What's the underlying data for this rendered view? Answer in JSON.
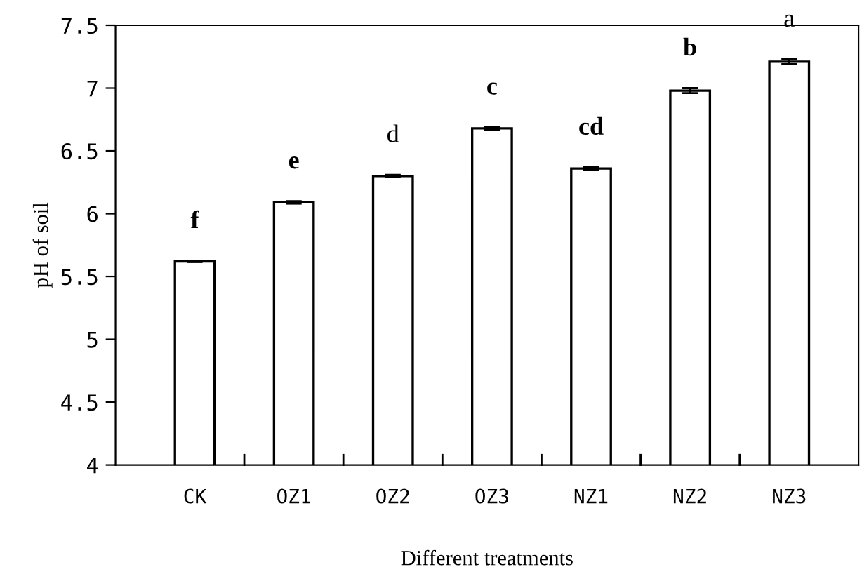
{
  "chart_data": {
    "type": "bar",
    "xlabel": "Different treatments",
    "ylabel": "pH of soil",
    "categories": [
      "CK",
      "OZ1",
      "OZ2",
      "OZ3",
      "NZ1",
      "NZ2",
      "NZ3"
    ],
    "values": [
      5.62,
      6.09,
      6.3,
      6.68,
      6.36,
      6.98,
      7.21
    ],
    "errors": [
      0.005,
      0.01,
      0.01,
      0.01,
      0.01,
      0.02,
      0.02
    ],
    "color": "#ffffff",
    "ylim": [
      4,
      7.5
    ],
    "yticks": [
      4,
      4.5,
      5,
      5.5,
      6,
      6.5,
      7,
      7.5
    ],
    "grid": false,
    "legend": false,
    "annotations": [
      {
        "text": "f",
        "x": "CK",
        "y": 5.62
      },
      {
        "text": "e",
        "x": "OZ1",
        "y": 6.09
      },
      {
        "text": "d",
        "x": "OZ2",
        "y": 6.3
      },
      {
        "text": "c",
        "x": "OZ3",
        "y": 6.68
      },
      {
        "text": "cd",
        "x": "NZ1",
        "y": 6.36
      },
      {
        "text": "b",
        "x": "NZ2",
        "y": 6.98
      },
      {
        "text": "a",
        "x": "NZ3",
        "y": 7.21
      }
    ]
  }
}
